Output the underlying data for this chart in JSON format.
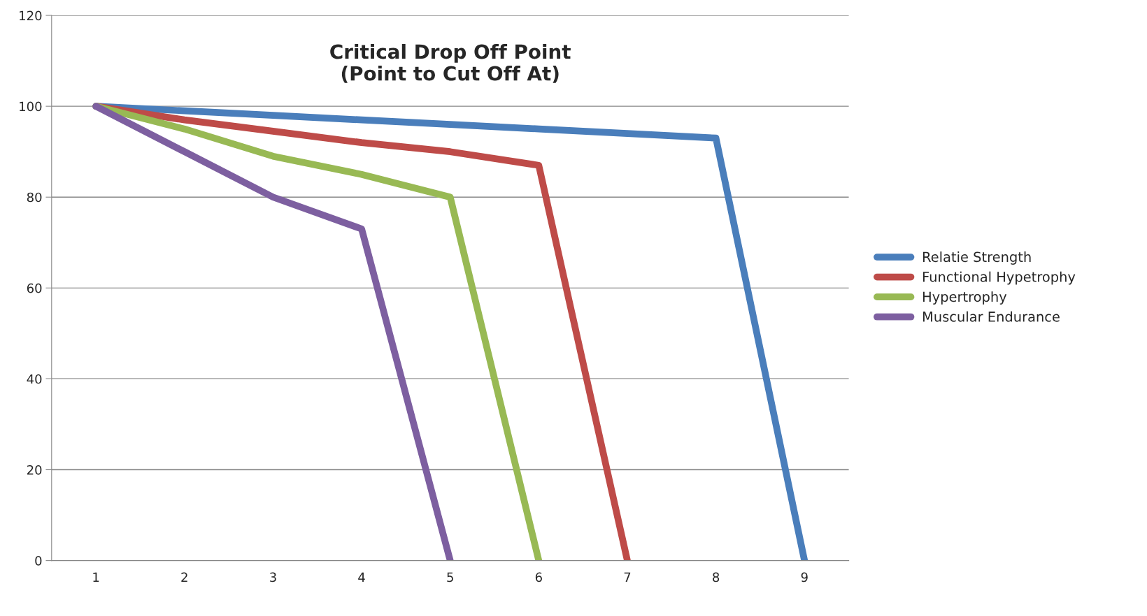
{
  "chart_data": {
    "type": "line",
    "title": "Critical Drop Off Point\n(Point to Cut Off At)",
    "categories": [
      "1",
      "2",
      "3",
      "4",
      "5",
      "6",
      "7",
      "8",
      "9"
    ],
    "series": [
      {
        "name": "Relatie Strength",
        "color": "#4a7ebb",
        "values": [
          100,
          99,
          98,
          97,
          96,
          95,
          94,
          93,
          0
        ]
      },
      {
        "name": "Functional Hypetrophy",
        "color": "#be4b48",
        "values": [
          100,
          97,
          94.5,
          92,
          90,
          87,
          0,
          null,
          null
        ]
      },
      {
        "name": "Hypertrophy",
        "color": "#98b954",
        "values": [
          100,
          95,
          89,
          85,
          80,
          0,
          null,
          null,
          null
        ]
      },
      {
        "name": "Muscular Endurance",
        "color": "#7d5fa0",
        "values": [
          100,
          90,
          80,
          73,
          0,
          null,
          null,
          null,
          null
        ]
      }
    ],
    "ylim": [
      0,
      120
    ],
    "yticks": [
      0,
      20,
      40,
      60,
      80,
      100,
      120
    ],
    "grid": "y",
    "legend": "right",
    "marker": "none",
    "line_style": "solid"
  }
}
